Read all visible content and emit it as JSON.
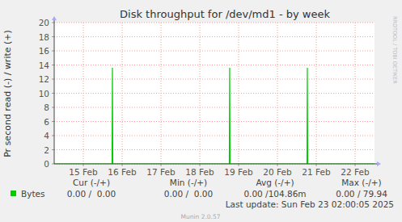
{
  "chart_data": {
    "type": "line",
    "title": "Disk throughput for /dev/md1 - by week",
    "y_label": "Pr second read (-) / write (+)",
    "x": [
      14.75,
      16.24,
      16.25,
      16.26,
      19.26,
      19.27,
      19.28,
      21.26,
      21.27,
      21.28,
      23.0
    ],
    "series": [
      {
        "name": "Bytes",
        "color": "#00cc00",
        "values": [
          0,
          0,
          13.6,
          0,
          0,
          13.6,
          0,
          0,
          13.6,
          0,
          0
        ]
      }
    ],
    "xlim": [
      14.75,
      23.0
    ],
    "xticks": [
      {
        "value": 15.5,
        "label": "15 Feb"
      },
      {
        "value": 16.5,
        "label": "16 Feb"
      },
      {
        "value": 17.5,
        "label": "17 Feb"
      },
      {
        "value": 18.5,
        "label": "18 Feb"
      },
      {
        "value": 19.5,
        "label": "19 Feb"
      },
      {
        "value": 20.5,
        "label": "20 Feb"
      },
      {
        "value": 21.5,
        "label": "21 Feb"
      },
      {
        "value": 22.5,
        "label": "22 Feb"
      }
    ],
    "ylim": [
      0,
      20
    ],
    "yticks": [
      0,
      2,
      4,
      6,
      8,
      10,
      12,
      14,
      16,
      18,
      20
    ],
    "grid": true,
    "legend_table": {
      "headers": [
        "Cur (-/+)",
        "Min (-/+)",
        "Avg (-/+)",
        "Max (-/+)"
      ],
      "cells": [
        "0.00 /  0.00",
        "0.00 /  0.00",
        "0.00 /104.86m",
        "0.00 / 79.94"
      ]
    },
    "annotations": [
      "Last update: Sun Feb 23 02:00:05 2025",
      "Munin 2.0.57",
      "RRDTOOL / TOBI OETIKER"
    ]
  }
}
